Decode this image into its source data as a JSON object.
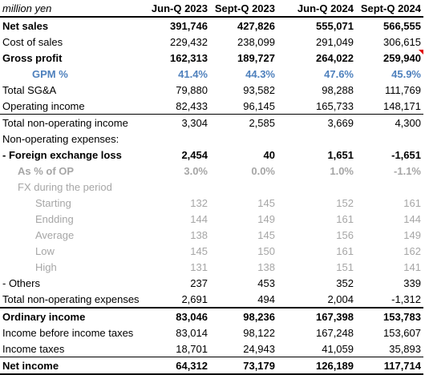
{
  "header": {
    "unit_label": "million yen",
    "columns": [
      "Jun-Q 2023",
      "Sept-Q 2023",
      "Jun-Q 2024",
      "Sept-Q 2024"
    ]
  },
  "rows": {
    "net_sales": {
      "label": "Net sales",
      "values": [
        "391,746",
        "427,826",
        "555,071",
        "566,555"
      ]
    },
    "cost_of_sales": {
      "label": "Cost of sales",
      "values": [
        "229,432",
        "238,099",
        "291,049",
        "306,615"
      ]
    },
    "gross_profit": {
      "label": "Gross profit",
      "values": [
        "162,313",
        "189,727",
        "264,022",
        "259,940"
      ]
    },
    "gpm": {
      "label": "GPM %",
      "values": [
        "41.4%",
        "44.3%",
        "47.6%",
        "45.9%"
      ]
    },
    "total_sga": {
      "label": "Total SG&A",
      "values": [
        "79,880",
        "93,582",
        "98,288",
        "111,769"
      ]
    },
    "operating_income": {
      "label": "Operating income",
      "values": [
        "82,433",
        "96,145",
        "165,733",
        "148,171"
      ]
    },
    "total_non_op_income": {
      "label": "Total non-operating income",
      "values": [
        "3,304",
        "2,585",
        "3,669",
        "4,300"
      ]
    },
    "non_op_expenses_header": {
      "label": "Non-operating expenses:"
    },
    "fx_loss": {
      "label": "- Foreign exchange loss",
      "values": [
        "2,454",
        "40",
        "1,651",
        "-1,651"
      ]
    },
    "fx_pct_op": {
      "label": "As % of OP",
      "values": [
        "3.0%",
        "0.0%",
        "1.0%",
        "-1.1%"
      ]
    },
    "fx_period_header": {
      "label": "FX during the period"
    },
    "fx_starting": {
      "label": "Starting",
      "values": [
        "132",
        "145",
        "152",
        "161"
      ]
    },
    "fx_ending": {
      "label": "Endding",
      "values": [
        "144",
        "149",
        "161",
        "144"
      ]
    },
    "fx_average": {
      "label": "Average",
      "values": [
        "138",
        "145",
        "156",
        "149"
      ]
    },
    "fx_low": {
      "label": "Low",
      "values": [
        "145",
        "150",
        "161",
        "162"
      ]
    },
    "fx_high": {
      "label": "High",
      "values": [
        "131",
        "138",
        "151",
        "141"
      ]
    },
    "others": {
      "label": "- Others",
      "values": [
        "237",
        "453",
        "352",
        "339"
      ]
    },
    "total_non_op_expenses": {
      "label": "Total non-operating expenses",
      "values": [
        "2,691",
        "494",
        "2,004",
        "-1,312"
      ]
    },
    "ordinary_income": {
      "label": "Ordinary income",
      "values": [
        "83,046",
        "98,236",
        "167,398",
        "153,783"
      ]
    },
    "income_before_tax": {
      "label": "Income before income taxes",
      "values": [
        "83,014",
        "98,122",
        "167,248",
        "153,607"
      ]
    },
    "income_taxes": {
      "label": "Income taxes",
      "values": [
        "18,701",
        "24,943",
        "41,059",
        "35,893"
      ]
    },
    "net_income": {
      "label": "Net income",
      "values": [
        "64,312",
        "73,179",
        "126,189",
        "117,714"
      ]
    }
  },
  "colors": {
    "gpm_text": "#4f81bd",
    "muted_text": "#a6a6a6",
    "comment_flag": "#e00000"
  }
}
